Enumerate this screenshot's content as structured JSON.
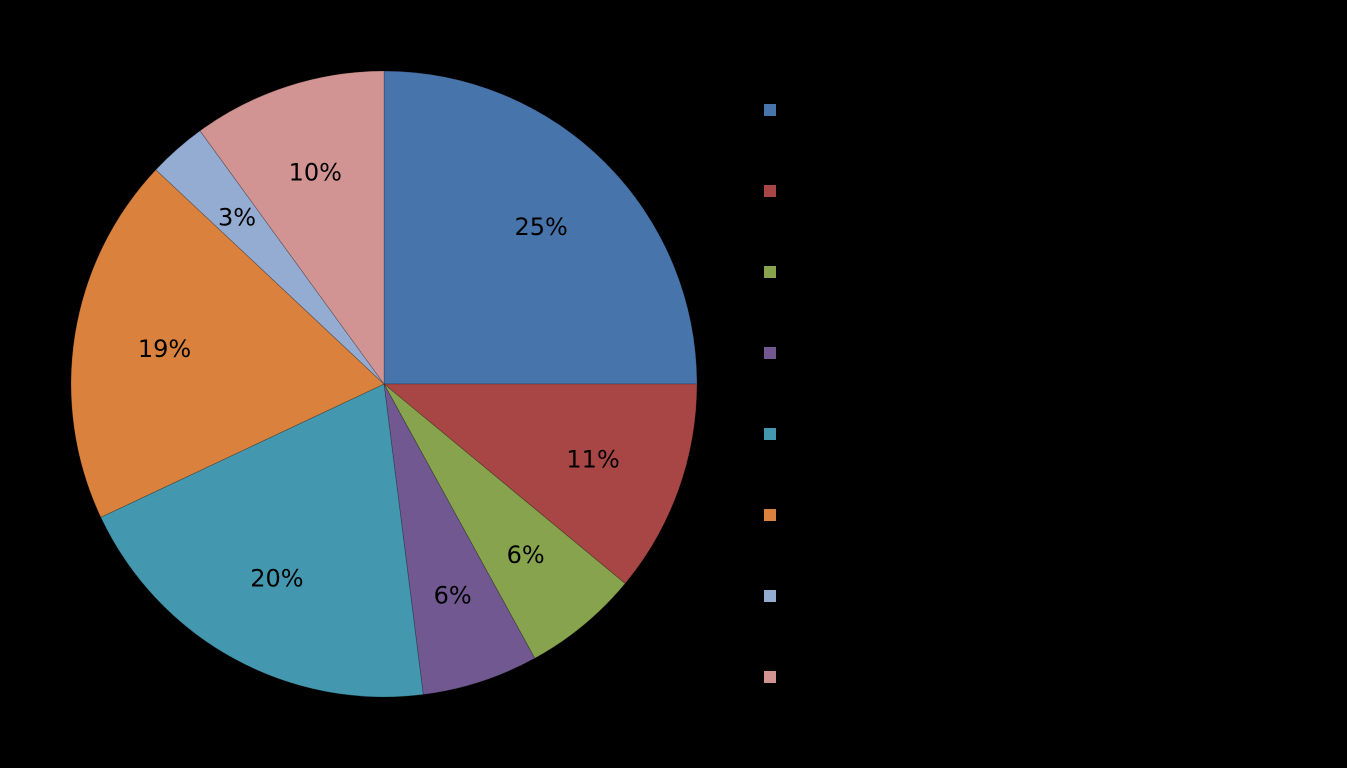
{
  "chart_data": {
    "type": "pie",
    "slices": [
      {
        "name": "",
        "value": 25,
        "label": "25%",
        "color": "#4774AA"
      },
      {
        "name": "",
        "value": 11,
        "label": "11%",
        "color": "#A84645"
      },
      {
        "name": "",
        "value": 6,
        "label": "6%",
        "color": "#88A34E"
      },
      {
        "name": "",
        "value": 6,
        "label": "6%",
        "color": "#715890"
      },
      {
        "name": "",
        "value": 20,
        "label": "20%",
        "color": "#4398AF"
      },
      {
        "name": "",
        "value": 19,
        "label": "19%",
        "color": "#DA823D"
      },
      {
        "name": "",
        "value": 3,
        "label": "3%",
        "color": "#94ABD2"
      },
      {
        "name": "",
        "value": 10,
        "label": "10%",
        "color": "#D29492"
      }
    ],
    "start_angle": "12 o'clock",
    "direction": "clockwise",
    "legend_position": "right",
    "background": "#000000"
  }
}
